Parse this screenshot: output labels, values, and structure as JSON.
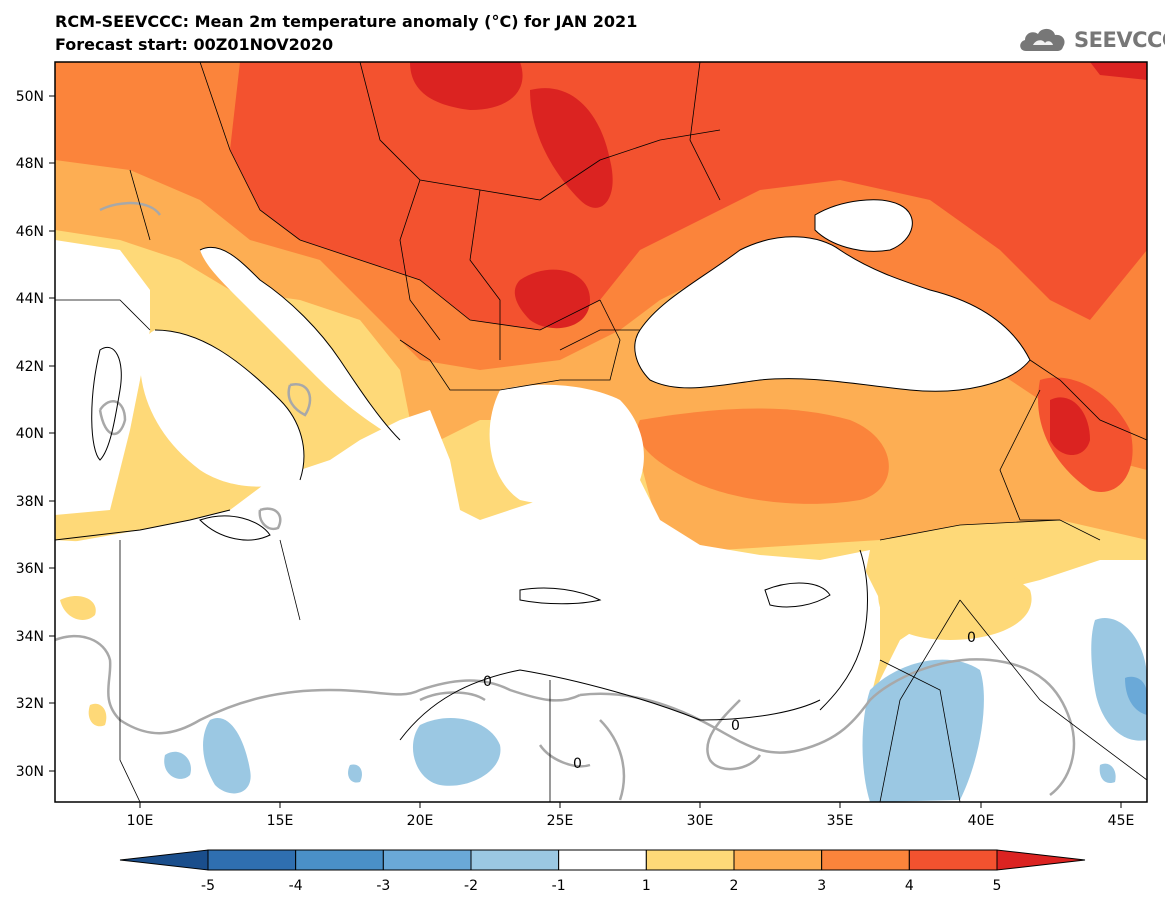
{
  "header": {
    "title": "RCM-SEEVCCC: Mean 2m temperature anomaly (°C) for JAN 2021",
    "subtitle": "Forecast start: 00Z01NOV2020",
    "logo_text": "SEEVCCC"
  },
  "map": {
    "lat_labels": [
      "50N",
      "48N",
      "46N",
      "44N",
      "42N",
      "40N",
      "38N",
      "36N",
      "34N",
      "32N",
      "30N"
    ],
    "lon_labels": [
      "10E",
      "15E",
      "20E",
      "25E",
      "30E",
      "35E",
      "40E",
      "45E"
    ],
    "contour_labels": [
      "0",
      "0",
      "0",
      "0"
    ],
    "sea_color": "#ffffff",
    "border_color": "#000000"
  },
  "colorbar": {
    "labels": [
      "-5",
      "-4",
      "-3",
      "-2",
      "-1",
      "1",
      "2",
      "3",
      "4",
      "5"
    ],
    "colors": [
      "#1a4e8c",
      "#2f6fb0",
      "#4a90c8",
      "#6aa9d8",
      "#9bc8e3",
      "#ffffff",
      "#fed978",
      "#fdae53",
      "#fb843b",
      "#f3522f",
      "#db2321"
    ]
  }
}
